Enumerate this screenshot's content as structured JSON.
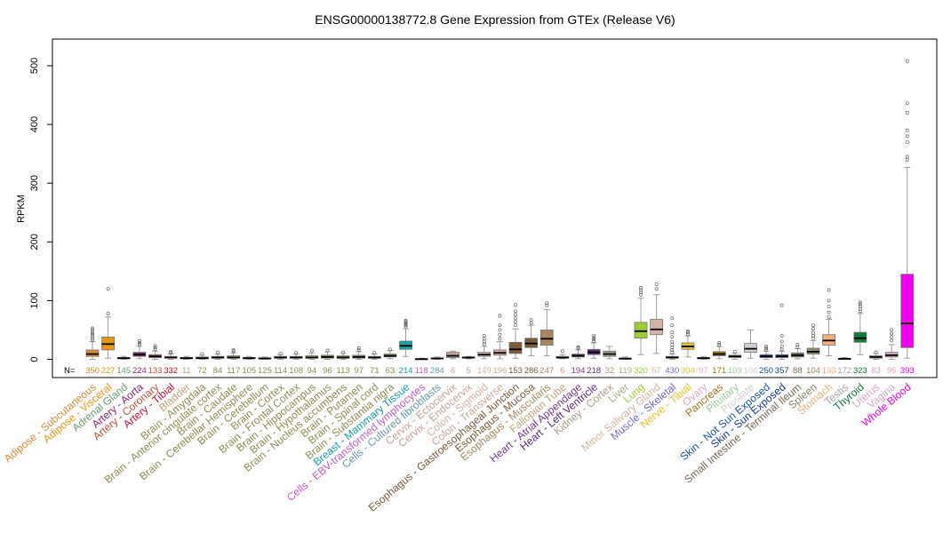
{
  "chart_data": {
    "type": "box",
    "title": "ENSG00000138772.8 Gene Expression from GTEx (Release V6)",
    "ylabel": "RPKM",
    "xlabel": "",
    "ylim": [
      -3,
      530
    ],
    "yticks": [
      0,
      100,
      200,
      300,
      400,
      500
    ],
    "grid": false,
    "n_prefix": "N=",
    "categories": [
      {
        "name": "Adipose - Subcutaneous",
        "color": "#d98b3a",
        "n": "350",
        "q1": 5,
        "median": 9,
        "q3": 16,
        "lo": 0,
        "hi": 30,
        "out": [
          33,
          36,
          40,
          43,
          46,
          50,
          53
        ]
      },
      {
        "name": "Adipose - Visceral",
        "color": "#e8960f",
        "n": "227",
        "q1": 16,
        "median": 26,
        "q3": 38,
        "lo": 2,
        "hi": 72,
        "out": [
          78,
          120
        ]
      },
      {
        "name": "Adrenal Gland",
        "color": "#6e9e70",
        "n": "145",
        "q1": 1,
        "median": 2,
        "q3": 3,
        "lo": 0,
        "hi": 5,
        "out": []
      },
      {
        "name": "Artery - Aorta",
        "color": "#8c2a6b",
        "n": "224",
        "q1": 5,
        "median": 8,
        "q3": 12,
        "lo": 1,
        "hi": 22,
        "out": [
          25,
          28,
          31
        ]
      },
      {
        "name": "Artery - Coronary",
        "color": "#c0543c",
        "n": "133",
        "q1": 3,
        "median": 5,
        "q3": 8,
        "lo": 0,
        "hi": 14,
        "out": [
          17,
          20,
          23
        ]
      },
      {
        "name": "Artery - Tibial",
        "color": "#c8102e",
        "n": "332",
        "q1": 2,
        "median": 3,
        "q3": 5,
        "lo": 0,
        "hi": 9,
        "out": [
          11,
          13
        ]
      },
      {
        "name": "Bladder",
        "color": "#c4a27a",
        "n": "11",
        "q1": 1,
        "median": 2,
        "q3": 3,
        "lo": 0,
        "hi": 5,
        "out": []
      },
      {
        "name": "Brain - Amygdala",
        "color": "#8f8d54",
        "n": "72",
        "q1": 1,
        "median": 2,
        "q3": 4,
        "lo": 0,
        "hi": 7,
        "out": [
          9
        ]
      },
      {
        "name": "Brain - Anterior cingulate cortex",
        "color": "#8f8d54",
        "n": "84",
        "q1": 2,
        "median": 3,
        "q3": 5,
        "lo": 0,
        "hi": 9,
        "out": [
          12
        ]
      },
      {
        "name": "Brain - Caudate",
        "color": "#8f8d54",
        "n": "117",
        "q1": 2,
        "median": 3,
        "q3": 6,
        "lo": 0,
        "hi": 11,
        "out": [
          14,
          16
        ]
      },
      {
        "name": "Brain - Cerebellar Hemisphere",
        "color": "#8f8d54",
        "n": "105",
        "q1": 1,
        "median": 2,
        "q3": 3,
        "lo": 0,
        "hi": 5,
        "out": []
      },
      {
        "name": "Brain - Cerebellum",
        "color": "#8f8d54",
        "n": "125",
        "q1": 1,
        "median": 1.5,
        "q3": 2.5,
        "lo": 0,
        "hi": 4,
        "out": []
      },
      {
        "name": "Brain - Cortex",
        "color": "#8f8d54",
        "n": "114",
        "q1": 2,
        "median": 3,
        "q3": 5,
        "lo": 0,
        "hi": 8,
        "out": [
          10
        ]
      },
      {
        "name": "Brain - Frontal Cortex",
        "color": "#8f8d54",
        "n": "108",
        "q1": 2,
        "median": 3,
        "q3": 5,
        "lo": 0,
        "hi": 9,
        "out": [
          11
        ]
      },
      {
        "name": "Brain - Hippocampus",
        "color": "#8f8d54",
        "n": "94",
        "q1": 2,
        "median": 3,
        "q3": 6,
        "lo": 0,
        "hi": 11,
        "out": [
          15
        ]
      },
      {
        "name": "Brain - Hypothalamus",
        "color": "#8f8d54",
        "n": "96",
        "q1": 2,
        "median": 4,
        "q3": 7,
        "lo": 0,
        "hi": 13,
        "out": [
          15
        ]
      },
      {
        "name": "Brain - Nucleus accumbens",
        "color": "#8f8d54",
        "n": "113",
        "q1": 2,
        "median": 3,
        "q3": 6,
        "lo": 0,
        "hi": 10,
        "out": [
          12
        ]
      },
      {
        "name": "Brain - Putamen",
        "color": "#8f8d54",
        "n": "97",
        "q1": 2,
        "median": 4,
        "q3": 7,
        "lo": 0,
        "hi": 13,
        "out": [
          16,
          19
        ]
      },
      {
        "name": "Brain - Spinal cord",
        "color": "#8f8d54",
        "n": "71",
        "q1": 2,
        "median": 3,
        "q3": 5,
        "lo": 0,
        "hi": 9,
        "out": [
          11
        ]
      },
      {
        "name": "Brain - Substantia nigra",
        "color": "#8f8d54",
        "n": "63",
        "q1": 4,
        "median": 6,
        "q3": 9,
        "lo": 1,
        "hi": 15,
        "out": [
          17
        ]
      },
      {
        "name": "Breast - Mammary Tissue",
        "color": "#17a0a6",
        "n": "214",
        "q1": 17,
        "median": 23,
        "q3": 31,
        "lo": 5,
        "hi": 52,
        "out": [
          56,
          58,
          60,
          62,
          64,
          66
        ]
      },
      {
        "name": "Cells - EBV-transformed lymphocytes",
        "color": "#c45ac8",
        "n": "118",
        "q1": 0.3,
        "median": 0.5,
        "q3": 1,
        "lo": 0,
        "hi": 2,
        "out": []
      },
      {
        "name": "Cells - Cultured fibroblasts",
        "color": "#6699aa",
        "n": "284",
        "q1": 1,
        "median": 1.5,
        "q3": 2.5,
        "lo": 0,
        "hi": 4,
        "out": []
      },
      {
        "name": "Cervix - Ectocervix",
        "color": "#c4a296",
        "n": "6",
        "q1": 3,
        "median": 6,
        "q3": 12,
        "lo": 1,
        "hi": 14,
        "out": []
      },
      {
        "name": "Cervix - Endocervix",
        "color": "#c4a296",
        "n": "5",
        "q1": 2,
        "median": 3,
        "q3": 4,
        "lo": 1,
        "hi": 5,
        "out": []
      },
      {
        "name": "Colon - Sigmoid",
        "color": "#d2b2a0",
        "n": "149",
        "q1": 5,
        "median": 8,
        "q3": 12,
        "lo": 1,
        "hi": 22,
        "out": [
          26,
          30,
          35,
          40
        ]
      },
      {
        "name": "Colon - Transverse",
        "color": "#c8a898",
        "n": "196",
        "q1": 7,
        "median": 11,
        "q3": 16,
        "lo": 1,
        "hi": 30,
        "out": [
          35,
          42,
          50,
          58,
          74
        ]
      },
      {
        "name": "Esophagus - Gastroesophageal Junction",
        "color": "#7a5c3c",
        "n": "153",
        "q1": 10,
        "median": 17,
        "q3": 29,
        "lo": 2,
        "hi": 52,
        "out": [
          58,
          64,
          70,
          76,
          82,
          93
        ]
      },
      {
        "name": "Esophagus - Mucosa",
        "color": "#7a5c3c",
        "n": "286",
        "q1": 20,
        "median": 27,
        "q3": 36,
        "lo": 6,
        "hi": 58,
        "out": [
          62,
          67
        ]
      },
      {
        "name": "Esophagus - Muscularis",
        "color": "#a98563",
        "n": "247",
        "q1": 24,
        "median": 35,
        "q3": 50,
        "lo": 6,
        "hi": 85,
        "out": [
          92,
          96
        ]
      },
      {
        "name": "Fallopian Tube",
        "color": "#c4a27a",
        "n": "6",
        "q1": 2,
        "median": 3,
        "q3": 5,
        "lo": 1,
        "hi": 8,
        "out": [
          14
        ]
      },
      {
        "name": "Heart - Atrial Appendage",
        "color": "#7a3a8c",
        "n": "194",
        "q1": 4,
        "median": 6,
        "q3": 9,
        "lo": 1,
        "hi": 16,
        "out": [
          19,
          21
        ]
      },
      {
        "name": "Heart - Left Ventricle",
        "color": "#5c2a78",
        "n": "218",
        "q1": 8,
        "median": 12,
        "q3": 17,
        "lo": 2,
        "hi": 28,
        "out": [
          31,
          34,
          37,
          40
        ]
      },
      {
        "name": "Kidney - Cortex",
        "color": "#aa9988",
        "n": "32",
        "q1": 5,
        "median": 9,
        "q3": 14,
        "lo": 1,
        "hi": 22,
        "out": []
      },
      {
        "name": "Liver",
        "color": "#aaaa88",
        "n": "119",
        "q1": 0.8,
        "median": 1.3,
        "q3": 2,
        "lo": 0,
        "hi": 4,
        "out": []
      },
      {
        "name": "Lung",
        "color": "#9acd32",
        "n": "320",
        "q1": 36,
        "median": 48,
        "q3": 63,
        "lo": 8,
        "hi": 104,
        "out": [
          110,
          114,
          118,
          122
        ]
      },
      {
        "name": "Minor Salivary Gland",
        "color": "#d2b4a0",
        "n": "57",
        "q1": 42,
        "median": 51,
        "q3": 68,
        "lo": 10,
        "hi": 110,
        "out": [
          120,
          128
        ]
      },
      {
        "name": "Muscle - Skeletal",
        "color": "#7b68c8",
        "n": "430",
        "q1": 2,
        "median": 3,
        "q3": 5,
        "lo": 0,
        "hi": 9,
        "out": [
          12,
          16,
          20,
          25,
          30,
          38,
          46,
          58,
          70
        ]
      },
      {
        "name": "Nerve - Tibial",
        "color": "#e6c222",
        "n": "304",
        "q1": 17,
        "median": 22,
        "q3": 28,
        "lo": 4,
        "hi": 40,
        "out": [
          43,
          46,
          48
        ]
      },
      {
        "name": "Ovary",
        "color": "#e8a6c8",
        "n": "97",
        "q1": 1,
        "median": 2,
        "q3": 3,
        "lo": 0,
        "hi": 5,
        "out": []
      },
      {
        "name": "Pancreas",
        "color": "#a0751a",
        "n": "171",
        "q1": 6,
        "median": 9,
        "q3": 13,
        "lo": 1,
        "hi": 22,
        "out": [
          25,
          28
        ]
      },
      {
        "name": "Pituitary",
        "color": "#98cc98",
        "n": "103",
        "q1": 3,
        "median": 5,
        "q3": 7,
        "lo": 0,
        "hi": 11,
        "out": [
          13
        ]
      },
      {
        "name": "Prostate",
        "color": "#d0d0d0",
        "n": "106",
        "q1": 12,
        "median": 18,
        "q3": 27,
        "lo": 2,
        "hi": 50,
        "out": []
      },
      {
        "name": "Skin - Not Sun Exposed",
        "color": "#1a56a8",
        "n": "250",
        "q1": 3,
        "median": 5,
        "q3": 8,
        "lo": 0,
        "hi": 14,
        "out": [
          16,
          19,
          22
        ]
      },
      {
        "name": "Skin - Sun Exposed",
        "color": "#1a3a88",
        "n": "357",
        "q1": 3,
        "median": 5,
        "q3": 8,
        "lo": 0,
        "hi": 14,
        "out": [
          17,
          22,
          30,
          40,
          92
        ]
      },
      {
        "name": "Small Intestine - Terminal Ileum",
        "color": "#7a6a5a",
        "n": "88",
        "q1": 4,
        "median": 7,
        "q3": 11,
        "lo": 1,
        "hi": 18,
        "out": [
          21,
          25
        ]
      },
      {
        "name": "Spleen",
        "color": "#8a8a6a",
        "n": "104",
        "q1": 9,
        "median": 13,
        "q3": 19,
        "lo": 2,
        "hi": 32,
        "out": [
          36,
          40,
          45,
          52,
          58
        ]
      },
      {
        "name": "Stomach",
        "color": "#f0b078",
        "n": "193",
        "q1": 24,
        "median": 32,
        "q3": 42,
        "lo": 6,
        "hi": 68,
        "out": [
          72,
          80,
          90,
          100,
          118
        ]
      },
      {
        "name": "Testis",
        "color": "#a6a6a6",
        "n": "172",
        "q1": 0.5,
        "median": 1,
        "q3": 1.6,
        "lo": 0,
        "hi": 3,
        "out": []
      },
      {
        "name": "Thyroid",
        "color": "#0f7a3c",
        "n": "323",
        "q1": 29,
        "median": 36,
        "q3": 46,
        "lo": 8,
        "hi": 78,
        "out": [
          82,
          86,
          90,
          94,
          97
        ]
      },
      {
        "name": "Uterus",
        "color": "#d4a6c8",
        "n": "83",
        "q1": 2,
        "median": 4,
        "q3": 6,
        "lo": 0,
        "hi": 10,
        "out": [
          12
        ]
      },
      {
        "name": "Vagina",
        "color": "#d4a6c8",
        "n": "96",
        "q1": 4,
        "median": 7,
        "q3": 12,
        "lo": 0,
        "hi": 25,
        "out": [
          32,
          38,
          44,
          50
        ]
      },
      {
        "name": "Whole Blood",
        "color": "#ee00ee",
        "n": "393",
        "q1": 20,
        "median": 61,
        "q3": 145,
        "lo": 2,
        "hi": 327,
        "out": [
          340,
          345,
          370,
          380,
          390,
          420,
          436,
          508
        ]
      }
    ]
  }
}
